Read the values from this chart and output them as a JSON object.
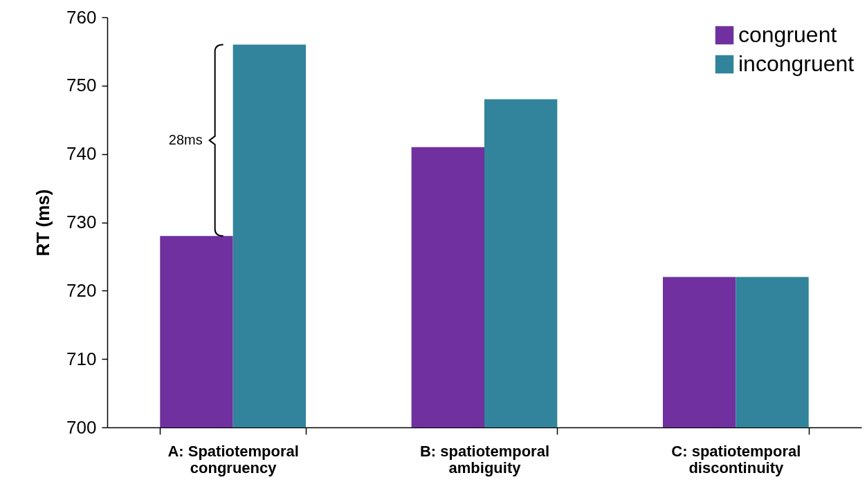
{
  "chart_data": {
    "type": "bar",
    "ylabel": "RT (ms)",
    "categories": [
      "A: Spatiotemporal\ncongruency",
      "B: spatiotemporal\nambiguity",
      "C: spatiotemporal\ndiscontinuity"
    ],
    "series": [
      {
        "name": "congruent",
        "color": "#7030a0",
        "values": [
          728,
          741,
          722
        ]
      },
      {
        "name": "incongruent",
        "color": "#31849b",
        "values": [
          756,
          748,
          722
        ]
      }
    ],
    "ylim": [
      700,
      760
    ],
    "yticks": [
      700,
      710,
      720,
      730,
      740,
      750,
      760
    ],
    "annotations": [
      {
        "text": "28ms",
        "x": "A: Spatiotemporal\ncongruency",
        "y": 742
      }
    ],
    "legend": "top right"
  }
}
